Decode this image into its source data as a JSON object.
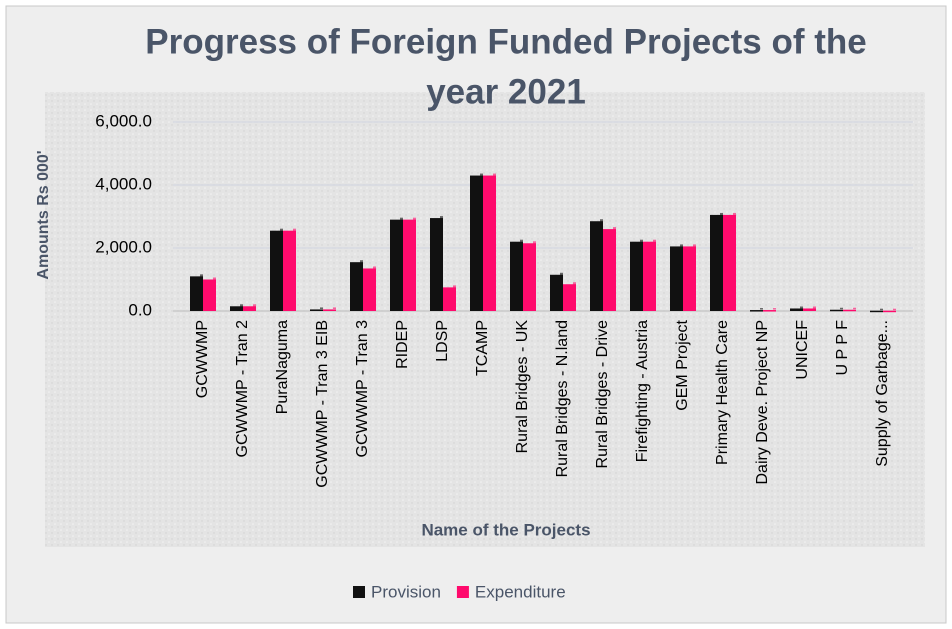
{
  "chart_data": {
    "type": "bar",
    "title": "Progress of Foreign Funded Projects of the year 2021",
    "x_label": "Name of the Projects",
    "y_label": "Amounts Rs 000'",
    "categories": [
      "GCWWMP",
      "GCWWMP - Tran 2",
      "PuraNaguma",
      "GCWWMP - Tran 3  EIB",
      "GCWWMP - Tran 3",
      "RIDEP",
      "LDSP",
      "TCAMP",
      "Rural Bridges - UK",
      "Rural Bridges - N.land",
      "Rural Bridges - Drive",
      "Firefighting -  Austria",
      "GEM Project",
      "Primary Health Care",
      "Dairy Deve. Project NP",
      "UNICEF",
      "U P P F",
      "Supply of Garbage..."
    ],
    "series": [
      {
        "name": "Provision",
        "color": "#111111",
        "values": [
          1100,
          150,
          2550,
          50,
          1550,
          2900,
          2950,
          4300,
          2200,
          1150,
          2850,
          2200,
          2050,
          3050,
          30,
          80,
          40,
          10
        ]
      },
      {
        "name": "Expenditure",
        "color": "#ff0a6c",
        "values": [
          1000,
          150,
          2550,
          50,
          1350,
          2900,
          750,
          4300,
          2150,
          850,
          2600,
          2200,
          2050,
          3050,
          30,
          80,
          40,
          10
        ]
      }
    ],
    "ylim": [
      0,
      6000
    ],
    "yticks": [
      {
        "value": 0,
        "label": "0.0"
      },
      {
        "value": 2000,
        "label": "2,000.0"
      },
      {
        "value": 4000,
        "label": "4,000.0"
      },
      {
        "value": 6000,
        "label": "6,000.0"
      }
    ],
    "grid": true,
    "legend": "bottom"
  }
}
